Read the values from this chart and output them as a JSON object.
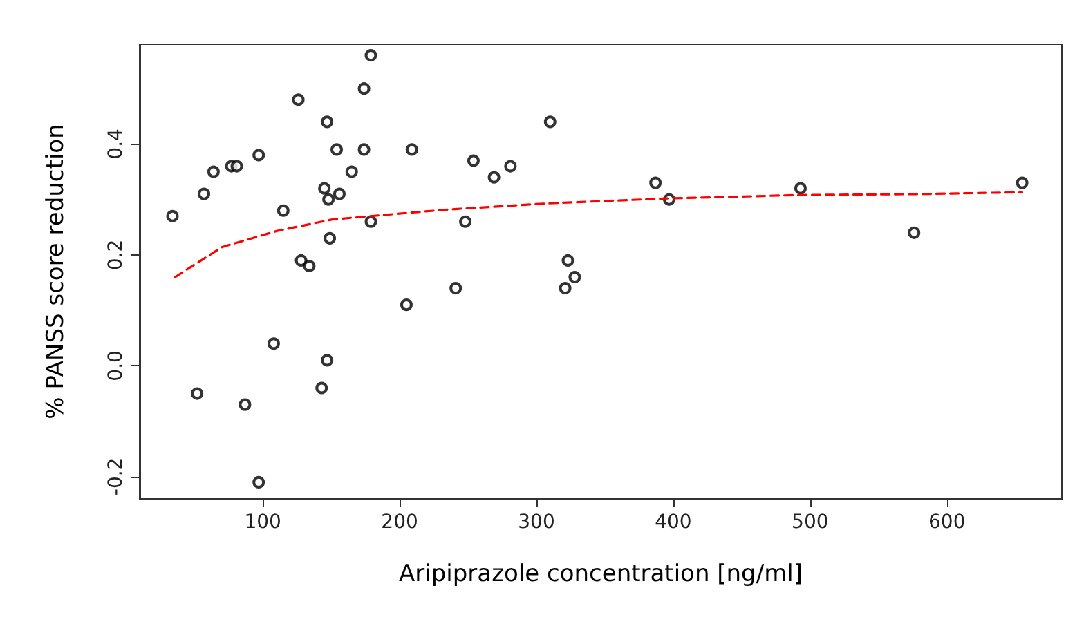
{
  "chart_data": {
    "type": "scatter",
    "xlabel": "Aripiprazole concentration [ng/ml]",
    "ylabel": "% PANSS score reduction",
    "xlim": [
      10,
      684
    ],
    "xticks": [
      100,
      200,
      300,
      400,
      500,
      600
    ],
    "ylim": [
      -0.24,
      0.58
    ],
    "yticks": [
      {
        "value": -0.2,
        "label": "-0.2"
      },
      {
        "value": 0,
        "label": "0.0"
      },
      {
        "value": 0.2,
        "label": "0.2"
      },
      {
        "value": 0.4,
        "label": "0.4"
      }
    ],
    "grid": false,
    "series": [
      {
        "color": "#000000",
        "marker": "circle",
        "x": [
          34,
          52,
          57,
          64,
          77,
          81,
          87,
          97,
          97,
          108,
          115,
          126,
          128,
          134,
          143,
          145,
          147,
          147,
          148,
          149,
          154,
          156,
          165,
          174,
          174,
          179,
          179,
          205,
          209,
          241,
          248,
          254,
          269,
          281,
          310,
          323,
          321,
          328,
          387,
          397,
          493,
          576,
          655
        ],
        "values": [
          0.27,
          -0.05,
          0.31,
          0.35,
          0.36,
          0.36,
          -0.07,
          0.38,
          -0.21,
          0.04,
          0.28,
          0.48,
          0.19,
          0.18,
          -0.04,
          0.32,
          0.44,
          0.01,
          0.3,
          0.23,
          0.39,
          0.31,
          0.35,
          0.5,
          0.39,
          0.56,
          0.26,
          0.11,
          0.39,
          0.14,
          0.26,
          0.37,
          0.34,
          0.36,
          0.44,
          0.19,
          0.14,
          0.16,
          0.33,
          0.3,
          0.32,
          0.24,
          0.33
        ]
      },
      {
        "type": "line",
        "color": "#ff0000",
        "marker": "none",
        "line_style": "dashed",
        "x": [
          36,
          70,
          110,
          151,
          211,
          242,
          309,
          396,
          491,
          585,
          655
        ],
        "values": [
          0.16,
          0.214,
          0.243,
          0.264,
          0.277,
          0.283,
          0.293,
          0.302,
          0.308,
          0.31,
          0.313
        ]
      }
    ]
  }
}
